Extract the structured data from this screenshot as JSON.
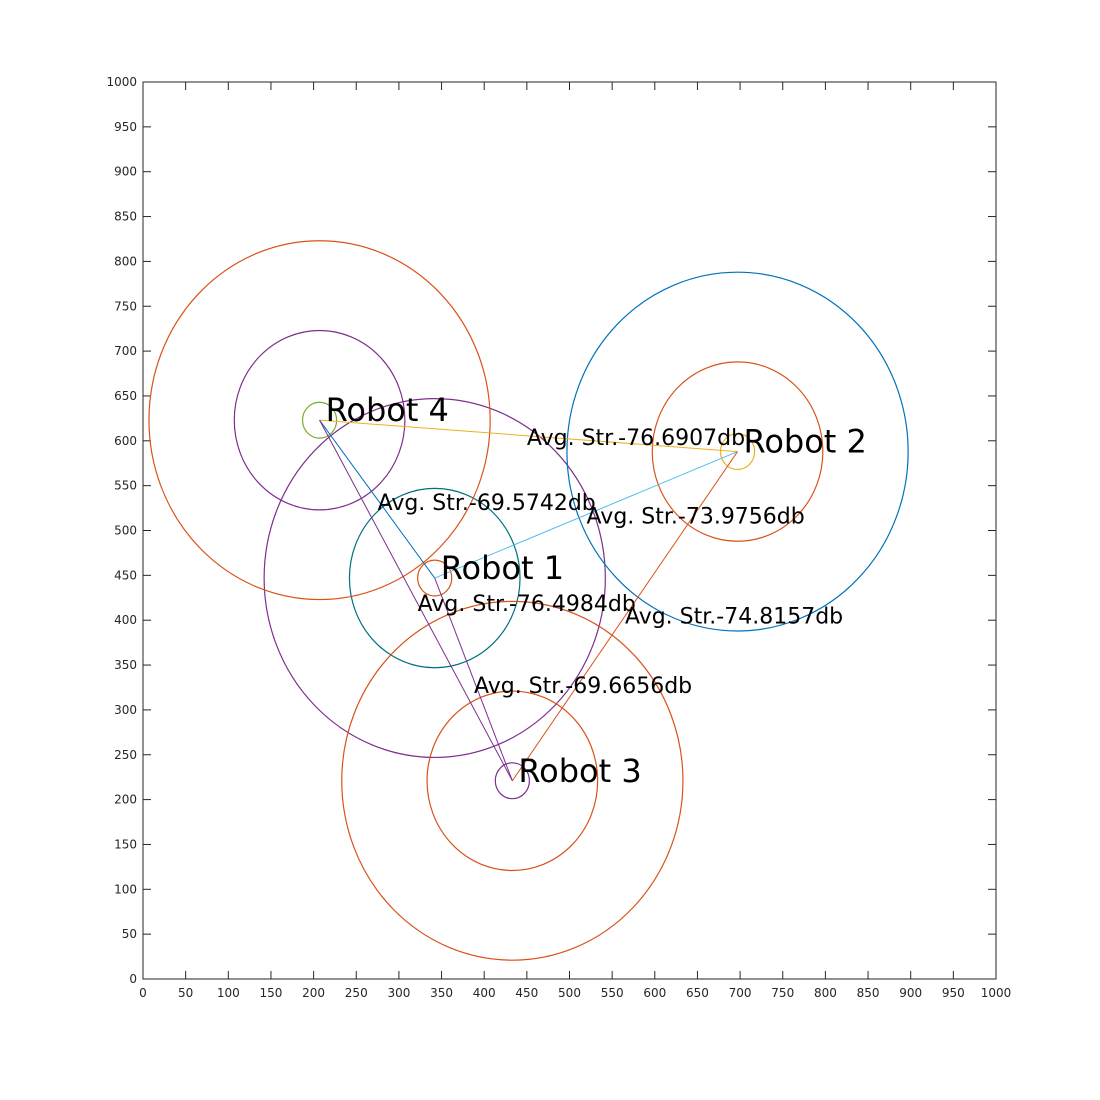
{
  "chart_data": {
    "type": "scatter",
    "xlim": [
      0,
      1000
    ],
    "ylim": [
      0,
      1000
    ],
    "x_ticks": [
      0,
      50,
      100,
      150,
      200,
      250,
      300,
      350,
      400,
      450,
      500,
      550,
      600,
      650,
      700,
      750,
      800,
      850,
      900,
      950,
      1000
    ],
    "y_ticks": [
      0,
      50,
      100,
      150,
      200,
      250,
      300,
      350,
      400,
      450,
      500,
      550,
      600,
      650,
      700,
      750,
      800,
      850,
      900,
      950,
      1000
    ],
    "grid": false,
    "robots": [
      {
        "label": "Robot 1",
        "x": 342,
        "y": 447,
        "rings": [
          {
            "r": 20,
            "color": "#D95319"
          },
          {
            "r": 100,
            "color": "#00727F"
          },
          {
            "r": 200,
            "color": "#7E2F8E"
          }
        ]
      },
      {
        "label": "Robot 2",
        "x": 697,
        "y": 588,
        "rings": [
          {
            "r": 20,
            "color": "#EDB120"
          },
          {
            "r": 100,
            "color": "#D95319"
          },
          {
            "r": 200,
            "color": "#0072BD"
          }
        ]
      },
      {
        "label": "Robot 3",
        "x": 433,
        "y": 221,
        "rings": [
          {
            "r": 20,
            "color": "#7E2F8E"
          },
          {
            "r": 100,
            "color": "#D95319"
          },
          {
            "r": 200,
            "color": "#D95319"
          }
        ]
      },
      {
        "label": "Robot 4",
        "x": 207,
        "y": 623,
        "rings": [
          {
            "r": 20,
            "color": "#77AC30"
          },
          {
            "r": 100,
            "color": "#7E2F8E"
          },
          {
            "r": 200,
            "color": "#D95319"
          }
        ]
      }
    ],
    "links": [
      {
        "from": 3,
        "to": 1,
        "color": "#EDB120",
        "label": "Avg. Str.-76.6907db",
        "lx": 450,
        "ly": 604
      },
      {
        "from": 3,
        "to": 0,
        "color": "#0072BD",
        "label": "Avg. Str.-69.5742db",
        "lx": 275,
        "ly": 532
      },
      {
        "from": 0,
        "to": 1,
        "color": "#4DBEEE",
        "label": "Avg. Str.-73.9756db",
        "lx": 520,
        "ly": 517
      },
      {
        "from": 0,
        "to": 2,
        "color": "#7E2F8E",
        "label": "Avg. Str.-76.4984db",
        "lx": 322,
        "ly": 419
      },
      {
        "from": 1,
        "to": 2,
        "color": "#D95319",
        "label": "Avg. Str.-74.8157db",
        "lx": 565,
        "ly": 405
      },
      {
        "from": 3,
        "to": 2,
        "color": "#7E2F8E",
        "label": "Avg. Str.-69.6656db",
        "lx": 388,
        "ly": 328
      }
    ]
  }
}
